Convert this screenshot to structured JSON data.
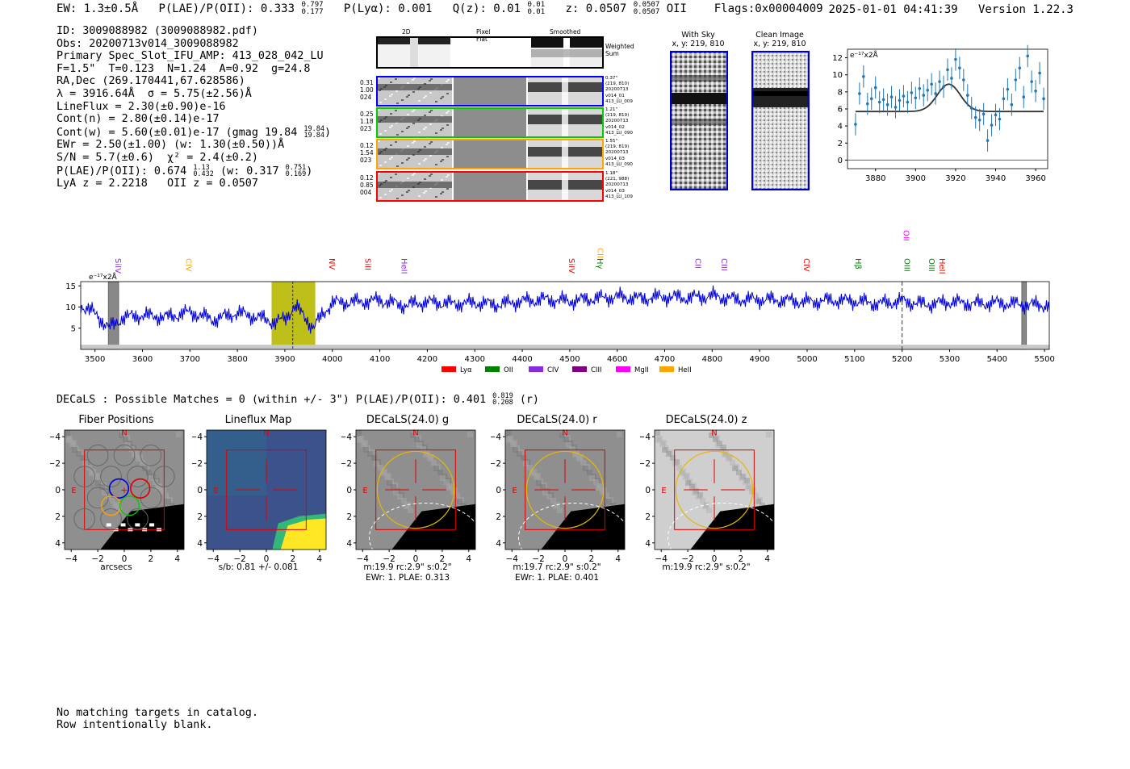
{
  "header": {
    "ew": "EW: 1.3±0.5Å",
    "plae": "P(LAE)/P(OII): 0.333",
    "plae_hi": "0.797",
    "plae_lo": "0.177",
    "plya": "P(Lyα): 0.001",
    "qz": "Q(z): 0.01",
    "qz_hi": "0.01",
    "qz_lo": "0.01",
    "z": "z: 0.0507",
    "z_hi": "0.0507",
    "z_lo": "0.0507",
    "z_line": "OII",
    "flags": "Flags:0x00004009",
    "datetime": "2025-01-01 04:41:39",
    "version": "Version 1.22.3"
  },
  "info": {
    "id": "ID: 3009088982 (3009088982.pdf)",
    "obs": "Obs: 20200713v014_3009088982",
    "primary": "Primary Spec_Slot_IFU_AMP: 413_028_042_LU",
    "fparams": "F=1.5\"  T=0.123  N=1.24  A=0.92  g=24.8",
    "radec": "RA,Dec (269.170441,67.628586)",
    "lambda": "λ = 3916.64Å  σ = 5.75(±2.56)Å",
    "lineflux": "LineFlux = 2.30(±0.90)e-16",
    "contn": "Cont(n) = 2.80(±0.14)e-17",
    "contw": "Cont(w) = 5.60(±0.01)e-17 (gmag 19.84",
    "contw_hi": "19.84",
    "contw_lo": "19.84",
    "ewr": "EWr = 2.50(±1.00) (w: 1.30(±0.50))Å",
    "sn": "S/N = 5.7(±0.6)  χ² = 2.4(±0.2)",
    "plae2": "P(LAE)/P(OII): 0.674",
    "plae2_hi": "1.13",
    "plae2_lo": "0.432",
    "plae2_w": "(w: 0.317",
    "plae2_w_hi": "0.751",
    "plae2_w_lo": "0.169",
    "lyaz": "LyA z = 2.2218   OII z = 0.0507"
  },
  "thumbs": {
    "col1": "2D Spec",
    "col2": "Pixel Flat",
    "col3": "Smoothed",
    "weighted": "Weighted Sum",
    "rows": [
      {
        "color": "#0000ff",
        "n1": "0.31",
        "n2": "1.00",
        "n3": "024",
        "i1": "0.37\"",
        "i2": "(219, 810)",
        "i3": "20200713",
        "i4": "v014_01",
        "i5": "413_LU_009"
      },
      {
        "color": "#00cc00",
        "n1": "0.25",
        "n2": "1.18",
        "n3": "023",
        "i1": "1.21\"",
        "i2": "(219, 819)",
        "i3": "20200713",
        "i4": "v014_02",
        "i5": "413_LU_090"
      },
      {
        "color": "#ffa500",
        "n1": "0.12",
        "n2": "1.54",
        "n3": "023",
        "i1": "1.55\"",
        "i2": "(219, 819)",
        "i3": "20200713",
        "i4": "v014_03",
        "i5": "413_LU_090"
      },
      {
        "color": "#ff0000",
        "n1": "0.12",
        "n2": "0.85",
        "n3": "004",
        "i1": "1.18\"",
        "i2": "(221, 988)",
        "i3": "20200713",
        "i4": "v014_03",
        "i5": "413_LU_109"
      }
    ]
  },
  "sky": {
    "with_sky": "With Sky",
    "clean": "Clean Image",
    "xy": "x, y: 219, 810"
  },
  "chart_data": [
    {
      "type": "scatter",
      "title": "",
      "ylabel_inset": "e⁻¹⁷x2Å",
      "xlim": [
        3866,
        3966
      ],
      "ylim": [
        -1,
        13
      ],
      "xticks": [
        3880,
        3900,
        3920,
        3940,
        3960
      ],
      "yticks": [
        0,
        2,
        4,
        6,
        8,
        10,
        12
      ],
      "x": [
        3870,
        3872,
        3874,
        3876,
        3878,
        3880,
        3882,
        3884,
        3886,
        3888,
        3890,
        3892,
        3894,
        3896,
        3898,
        3900,
        3902,
        3904,
        3906,
        3908,
        3910,
        3912,
        3914,
        3916,
        3918,
        3920,
        3922,
        3924,
        3926,
        3928,
        3930,
        3932,
        3934,
        3936,
        3938,
        3940,
        3942,
        3944,
        3946,
        3948,
        3950,
        3952,
        3954,
        3956,
        3958,
        3960,
        3962,
        3964
      ],
      "y": [
        4.2,
        7.8,
        9.8,
        6.6,
        7.2,
        8.5,
        6.8,
        7.1,
        6.5,
        7.4,
        6.2,
        7.0,
        7.5,
        6.8,
        7.9,
        7.3,
        8.4,
        7.6,
        8.2,
        8.9,
        7.8,
        9.2,
        8.6,
        10.6,
        9.6,
        11.8,
        10.8,
        9.4,
        7.6,
        6.1,
        5.0,
        4.7,
        5.4,
        2.3,
        4.1,
        5.3,
        4.8,
        7.2,
        8.3,
        6.5,
        9.4,
        10.8,
        7.4,
        12.2,
        9.2,
        8.1,
        10.2,
        7.2
      ],
      "yerr": 1.3,
      "model": {
        "type": "gaussian",
        "baseline": 5.7,
        "amplitude": 3.2,
        "center": 3916.6,
        "sigma": 5.75,
        "xrange": [
          3870,
          3964
        ]
      }
    },
    {
      "type": "line",
      "ylabel_inset": "e⁻¹⁷x2Å",
      "xlim": [
        3470,
        5510
      ],
      "ylim": [
        0,
        16
      ],
      "xticks": [
        3500,
        3600,
        3700,
        3800,
        3900,
        4000,
        4100,
        4200,
        4300,
        4400,
        4500,
        4600,
        4700,
        4800,
        4900,
        5000,
        5100,
        5200,
        5300,
        5400,
        5500
      ],
      "yticks": [
        5,
        10,
        15
      ],
      "flux_points": [
        [
          3470,
          10.4
        ],
        [
          3500,
          8.5
        ],
        [
          3530,
          5.0
        ],
        [
          3560,
          7.6
        ],
        [
          3600,
          8.0
        ],
        [
          3650,
          7.6
        ],
        [
          3700,
          8.8
        ],
        [
          3750,
          7.0
        ],
        [
          3800,
          8.6
        ],
        [
          3850,
          7.4
        ],
        [
          3880,
          6.4
        ],
        [
          3900,
          7.2
        ],
        [
          3920,
          10.2
        ],
        [
          3940,
          8.0
        ],
        [
          3960,
          5.0
        ],
        [
          3980,
          8.4
        ],
        [
          4000,
          11.0
        ],
        [
          4050,
          11.2
        ],
        [
          4100,
          11.6
        ],
        [
          4150,
          10.4
        ],
        [
          4200,
          11.2
        ],
        [
          4250,
          10.8
        ],
        [
          4300,
          11.0
        ],
        [
          4350,
          10.6
        ],
        [
          4400,
          11.4
        ],
        [
          4450,
          11.8
        ],
        [
          4500,
          11.4
        ],
        [
          4550,
          12.0
        ],
        [
          4600,
          12.4
        ],
        [
          4650,
          12.0
        ],
        [
          4700,
          12.4
        ],
        [
          4750,
          12.2
        ],
        [
          4800,
          12.6
        ],
        [
          4850,
          11.8
        ],
        [
          4900,
          11.8
        ],
        [
          4950,
          11.6
        ],
        [
          5000,
          11.2
        ],
        [
          5050,
          11.6
        ],
        [
          5100,
          11.4
        ],
        [
          5150,
          10.8
        ],
        [
          5200,
          11.4
        ],
        [
          5250,
          10.6
        ],
        [
          5300,
          11.2
        ],
        [
          5350,
          10.8
        ],
        [
          5400,
          11.0
        ],
        [
          5450,
          10.6
        ],
        [
          5510,
          10.4
        ]
      ],
      "sky_level": 1.1,
      "highlight_band": [
        3872,
        3964
      ],
      "emission_wave": 3916.6,
      "oii_marker": 5200,
      "bad_regions": [
        [
          3528,
          3550
        ],
        [
          5452,
          5462
        ]
      ],
      "lines": [
        {
          "name": "SiIV",
          "wave": 3548,
          "color": "#8a2be2",
          "row": 0
        },
        {
          "name": "CIV",
          "wave": 3697,
          "color": "#ffa500",
          "row": 0
        },
        {
          "name": "NV",
          "wave": 3999,
          "color": "#ff0000",
          "row": 0
        },
        {
          "name": "SiII",
          "wave": 4074,
          "color": "#ff0000",
          "row": 0
        },
        {
          "name": "HeII",
          "wave": 4151,
          "color": "#8a2be2",
          "row": 0
        },
        {
          "name": "SiIV",
          "wave": 4504,
          "color": "#ff0000",
          "row": 0
        },
        {
          "name": "CIII",
          "wave": 4564,
          "color": "#ffa500",
          "row": 1
        },
        {
          "name": "Hγ",
          "wave": 4563,
          "color": "#008000",
          "row": 0
        },
        {
          "name": "CII",
          "wave": 4770,
          "color": "#8a2be2",
          "row": 0
        },
        {
          "name": "CIII",
          "wave": 4825,
          "color": "#8a2be2",
          "row": 0
        },
        {
          "name": "CIV",
          "wave": 4998,
          "color": "#ff0000",
          "row": 0
        },
        {
          "name": "Hβ",
          "wave": 5107,
          "color": "#008000",
          "row": 0
        },
        {
          "name": "OII",
          "wave": 5208,
          "color": "#ff00ff",
          "row": 2
        },
        {
          "name": "OIII",
          "wave": 5210,
          "color": "#008000",
          "row": 0
        },
        {
          "name": "OIII",
          "wave": 5262,
          "color": "#008000",
          "row": 0
        },
        {
          "name": "HeII",
          "wave": 5284,
          "color": "#ff0000",
          "row": 0
        }
      ],
      "legend": [
        {
          "label": "Lyα",
          "color": "#ff0000"
        },
        {
          "label": "OII",
          "color": "#008000"
        },
        {
          "label": "CIV",
          "color": "#8a2be2"
        },
        {
          "label": "CIII",
          "color": "#800080"
        },
        {
          "label": "MgII",
          "color": "#ff00ff"
        },
        {
          "label": "HeII",
          "color": "#ffa500"
        }
      ]
    }
  ],
  "decals": {
    "summary": "DECaLS : Possible Matches = 0 (within +/- 3\")  P(LAE)/P(OII): 0.401",
    "summary_hi": "0.819",
    "summary_lo": "0.208",
    "summary_band": "(r)",
    "ticks": [
      "−4",
      "−2",
      "0",
      "2",
      "4"
    ],
    "north": "N",
    "east": "E",
    "cutouts": [
      {
        "title": "Fiber Positions",
        "cap1": "arcsecs",
        "cap2": ""
      },
      {
        "title": "Lineflux Map",
        "cap1": "s/b: 0.81 +/- 0.081",
        "cap2": ""
      },
      {
        "title": "DECaLS(24.0) g",
        "cap1": "m:19.9 rc:2.9\"  s:0.2\"",
        "cap2": "EWr: 1. PLAE: 0.313"
      },
      {
        "title": "DECaLS(24.0) r",
        "cap1": "m:19.7 rc:2.9\"  s:0.2\"",
        "cap2": "EWr: 1. PLAE: 0.401"
      },
      {
        "title": "DECaLS(24.0) z",
        "cap1": "m:19.9 rc:2.9\"  s:0.2\"",
        "cap2": ""
      }
    ]
  },
  "footer": {
    "line1": "No matching targets in catalog.",
    "line2": "Row intentionally blank."
  }
}
